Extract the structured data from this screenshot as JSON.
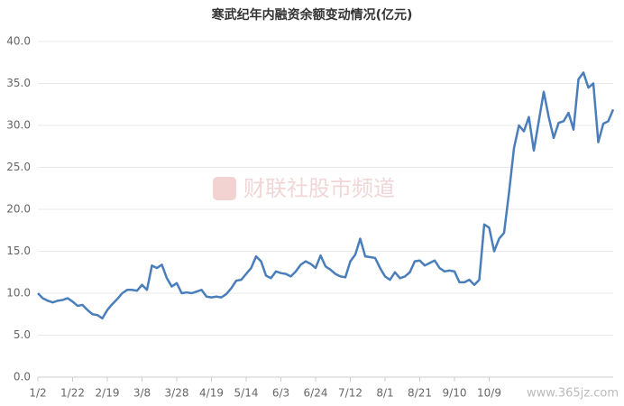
{
  "chart_data": {
    "type": "line",
    "title": "寒武纪年内融资余额变动情况(亿元)",
    "watermark": "财联社股市频道",
    "source_watermark": "www.365jz.com",
    "categories": [
      "1/2",
      null,
      null,
      null,
      null,
      null,
      null,
      "1/22",
      null,
      null,
      null,
      null,
      null,
      null,
      "2/19",
      null,
      null,
      null,
      null,
      null,
      null,
      "3/8",
      null,
      null,
      null,
      null,
      null,
      null,
      "3/28",
      null,
      null,
      null,
      null,
      null,
      null,
      "4/19",
      null,
      null,
      null,
      null,
      null,
      null,
      "5/14",
      null,
      null,
      null,
      null,
      null,
      null,
      "6/3",
      null,
      null,
      null,
      null,
      null,
      null,
      "6/24",
      null,
      null,
      null,
      null,
      null,
      null,
      "7/12",
      null,
      null,
      null,
      null,
      null,
      null,
      "8/1",
      null,
      null,
      null,
      null,
      null,
      null,
      "8/21",
      null,
      null,
      null,
      null,
      null,
      null,
      "9/10",
      null,
      null,
      null,
      null,
      null,
      null,
      "10/9",
      null,
      null,
      null,
      null,
      null,
      null,
      null,
      null,
      null,
      null,
      null,
      null,
      null,
      null,
      null,
      null,
      null,
      null,
      null,
      null,
      null,
      null,
      null,
      null,
      null
    ],
    "series": [
      {
        "name": "融资余额",
        "color": "#4a7ebb",
        "values": [
          10.0,
          9.4,
          9.1,
          8.9,
          9.1,
          9.2,
          9.4,
          9.0,
          8.5,
          8.6,
          8.0,
          7.5,
          7.4,
          7.0,
          8.0,
          8.7,
          9.3,
          10.0,
          10.4,
          10.4,
          10.3,
          11.0,
          10.4,
          13.3,
          13.0,
          13.4,
          11.8,
          10.8,
          11.2,
          10.0,
          10.1,
          10.0,
          10.2,
          10.4,
          9.6,
          9.5,
          9.6,
          9.5,
          9.9,
          10.6,
          11.5,
          11.6,
          12.3,
          13.0,
          14.4,
          13.8,
          12.1,
          11.8,
          12.6,
          12.4,
          12.3,
          12.0,
          12.6,
          13.4,
          13.8,
          13.5,
          13.0,
          14.5,
          13.2,
          12.8,
          12.3,
          12.0,
          11.9,
          13.8,
          14.6,
          16.5,
          14.4,
          14.3,
          14.2,
          13.0,
          12.0,
          11.6,
          12.5,
          11.8,
          12.0,
          12.5,
          13.8,
          13.9,
          13.3,
          13.6,
          13.9,
          13.0,
          12.6,
          12.7,
          12.6,
          11.3,
          11.3,
          11.6,
          11.0,
          11.6,
          18.2,
          17.8,
          15.0,
          16.5,
          17.2,
          22.0,
          27.3,
          30.0,
          29.3,
          31.0,
          27.0,
          30.5,
          34.0,
          31.0,
          28.5,
          30.3,
          30.5,
          31.5,
          29.5,
          35.5,
          36.3,
          34.5,
          35.0,
          28.0,
          30.2,
          30.5,
          31.9
        ]
      }
    ],
    "ylim": [
      0,
      40
    ],
    "yticks": [
      {
        "value": 0,
        "label": "0.0"
      },
      {
        "value": 5,
        "label": "5.0"
      },
      {
        "value": 10,
        "label": "10.0"
      },
      {
        "value": 15,
        "label": "15.0"
      },
      {
        "value": 20,
        "label": "20.0"
      },
      {
        "value": 25,
        "label": "25.0"
      },
      {
        "value": 30,
        "label": "30.0"
      },
      {
        "value": 35,
        "label": "35.0"
      },
      {
        "value": 40,
        "label": "40.0"
      }
    ],
    "grid": true
  }
}
